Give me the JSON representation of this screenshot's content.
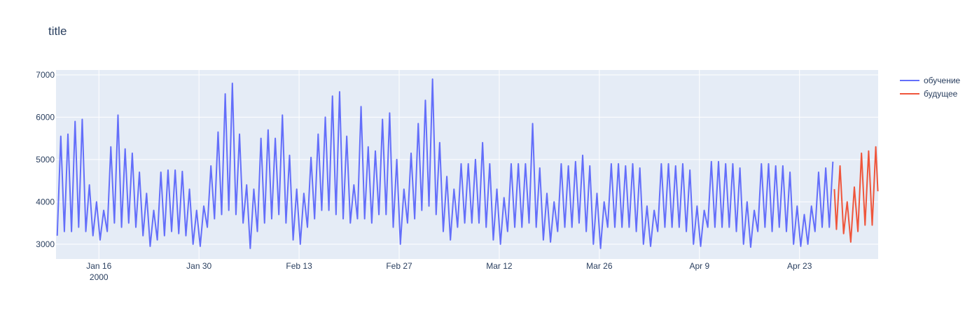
{
  "chart_data": {
    "type": "line",
    "title": "title",
    "xlim": [
      "2000-01-10 00:00",
      "2000-05-04 00:00"
    ],
    "xticks": [
      {
        "value": "2000-01-16",
        "label": "Jan 16\n2000"
      },
      {
        "value": "2000-01-30",
        "label": "Jan 30"
      },
      {
        "value": "2000-02-13",
        "label": "Feb 13"
      },
      {
        "value": "2000-02-27",
        "label": "Feb 27"
      },
      {
        "value": "2000-03-12",
        "label": "Mar 12"
      },
      {
        "value": "2000-03-26",
        "label": "Mar 26"
      },
      {
        "value": "2000-04-09",
        "label": "Apr 9"
      },
      {
        "value": "2000-04-23",
        "label": "Apr 23"
      }
    ],
    "ylim": [
      2650,
      7115
    ],
    "yticks": [
      3000,
      4000,
      5000,
      6000,
      7000
    ],
    "grid": true,
    "legend": "top-right",
    "series": [
      {
        "name": "обучение",
        "color": "#636efa",
        "x": [
          "2000-01-10 04:00",
          "2000-01-10 16:00",
          "2000-01-11 04:00",
          "2000-01-11 16:00",
          "2000-01-12 04:00",
          "2000-01-12 16:00",
          "2000-01-13 04:00",
          "2000-01-13 16:00",
          "2000-01-14 04:00",
          "2000-01-14 16:00",
          "2000-01-15 04:00",
          "2000-01-15 16:00",
          "2000-01-16 04:00",
          "2000-01-16 16:00",
          "2000-01-17 04:00",
          "2000-01-17 16:00",
          "2000-01-18 04:00",
          "2000-01-18 16:00",
          "2000-01-19 04:00",
          "2000-01-19 16:00",
          "2000-01-20 04:00",
          "2000-01-20 16:00",
          "2000-01-21 04:00",
          "2000-01-21 16:00",
          "2000-01-22 04:00",
          "2000-01-22 16:00",
          "2000-01-23 04:00",
          "2000-01-23 16:00",
          "2000-01-24 04:00",
          "2000-01-24 16:00",
          "2000-01-25 04:00",
          "2000-01-25 16:00",
          "2000-01-26 04:00",
          "2000-01-26 16:00",
          "2000-01-27 04:00",
          "2000-01-27 16:00",
          "2000-01-28 04:00",
          "2000-01-28 16:00",
          "2000-01-29 04:00",
          "2000-01-29 16:00",
          "2000-01-30 04:00",
          "2000-01-30 16:00",
          "2000-01-31 04:00",
          "2000-01-31 16:00",
          "2000-02-01 04:00",
          "2000-02-01 16:00",
          "2000-02-02 04:00",
          "2000-02-02 16:00",
          "2000-02-03 04:00",
          "2000-02-03 16:00",
          "2000-02-04 04:00",
          "2000-02-04 16:00",
          "2000-02-05 04:00",
          "2000-02-05 16:00",
          "2000-02-06 04:00",
          "2000-02-06 16:00",
          "2000-02-07 04:00",
          "2000-02-07 16:00",
          "2000-02-08 04:00",
          "2000-02-08 16:00",
          "2000-02-09 04:00",
          "2000-02-09 16:00",
          "2000-02-10 04:00",
          "2000-02-10 16:00",
          "2000-02-11 04:00",
          "2000-02-11 16:00",
          "2000-02-12 04:00",
          "2000-02-12 16:00",
          "2000-02-13 04:00",
          "2000-02-13 16:00",
          "2000-02-14 04:00",
          "2000-02-14 16:00",
          "2000-02-15 04:00",
          "2000-02-15 16:00",
          "2000-02-16 04:00",
          "2000-02-16 16:00",
          "2000-02-17 04:00",
          "2000-02-17 16:00",
          "2000-02-18 04:00",
          "2000-02-18 16:00",
          "2000-02-19 04:00",
          "2000-02-19 16:00",
          "2000-02-20 04:00",
          "2000-02-20 16:00",
          "2000-02-21 04:00",
          "2000-02-21 16:00",
          "2000-02-22 04:00",
          "2000-02-22 16:00",
          "2000-02-23 04:00",
          "2000-02-23 16:00",
          "2000-02-24 04:00",
          "2000-02-24 16:00",
          "2000-02-25 04:00",
          "2000-02-25 16:00",
          "2000-02-26 04:00",
          "2000-02-26 16:00",
          "2000-02-27 04:00",
          "2000-02-27 16:00",
          "2000-02-28 04:00",
          "2000-02-28 16:00",
          "2000-02-29 04:00",
          "2000-02-29 16:00",
          "2000-03-01 04:00",
          "2000-03-01 16:00",
          "2000-03-02 04:00",
          "2000-03-02 16:00",
          "2000-03-03 04:00",
          "2000-03-03 16:00",
          "2000-03-04 04:00",
          "2000-03-04 16:00",
          "2000-03-05 04:00",
          "2000-03-05 16:00",
          "2000-03-06 04:00",
          "2000-03-06 16:00",
          "2000-03-07 04:00",
          "2000-03-07 16:00",
          "2000-03-08 04:00",
          "2000-03-08 16:00",
          "2000-03-09 04:00",
          "2000-03-09 16:00",
          "2000-03-10 04:00",
          "2000-03-10 16:00",
          "2000-03-11 04:00",
          "2000-03-11 16:00",
          "2000-03-12 04:00",
          "2000-03-12 16:00",
          "2000-03-13 04:00",
          "2000-03-13 16:00",
          "2000-03-14 04:00",
          "2000-03-14 16:00",
          "2000-03-15 04:00",
          "2000-03-15 16:00",
          "2000-03-16 04:00",
          "2000-03-16 16:00",
          "2000-03-17 04:00",
          "2000-03-17 16:00",
          "2000-03-18 04:00",
          "2000-03-18 16:00",
          "2000-03-19 04:00",
          "2000-03-19 16:00",
          "2000-03-20 04:00",
          "2000-03-20 16:00",
          "2000-03-21 04:00",
          "2000-03-21 16:00",
          "2000-03-22 04:00",
          "2000-03-22 16:00",
          "2000-03-23 04:00",
          "2000-03-23 16:00",
          "2000-03-24 04:00",
          "2000-03-24 16:00",
          "2000-03-25 04:00",
          "2000-03-25 16:00",
          "2000-03-26 04:00",
          "2000-03-26 16:00",
          "2000-03-27 04:00",
          "2000-03-27 16:00",
          "2000-03-28 04:00",
          "2000-03-28 16:00",
          "2000-03-29 04:00",
          "2000-03-29 16:00",
          "2000-03-30 04:00",
          "2000-03-30 16:00",
          "2000-03-31 04:00",
          "2000-03-31 16:00",
          "2000-04-01 04:00",
          "2000-04-01 16:00",
          "2000-04-02 04:00",
          "2000-04-02 16:00",
          "2000-04-03 04:00",
          "2000-04-03 16:00",
          "2000-04-04 04:00",
          "2000-04-04 16:00",
          "2000-04-05 04:00",
          "2000-04-05 16:00",
          "2000-04-06 04:00",
          "2000-04-06 16:00",
          "2000-04-07 04:00",
          "2000-04-07 16:00",
          "2000-04-08 04:00",
          "2000-04-08 16:00",
          "2000-04-09 04:00",
          "2000-04-09 16:00",
          "2000-04-10 04:00",
          "2000-04-10 16:00",
          "2000-04-11 04:00",
          "2000-04-11 16:00",
          "2000-04-12 04:00",
          "2000-04-12 16:00",
          "2000-04-13 04:00",
          "2000-04-13 16:00",
          "2000-04-14 04:00",
          "2000-04-14 16:00",
          "2000-04-15 04:00",
          "2000-04-15 16:00",
          "2000-04-16 04:00",
          "2000-04-16 16:00",
          "2000-04-17 04:00",
          "2000-04-17 16:00",
          "2000-04-18 04:00",
          "2000-04-18 16:00",
          "2000-04-19 04:00",
          "2000-04-19 16:00",
          "2000-04-20 04:00",
          "2000-04-20 16:00",
          "2000-04-21 04:00",
          "2000-04-21 16:00",
          "2000-04-22 04:00",
          "2000-04-22 16:00",
          "2000-04-23 04:00",
          "2000-04-23 16:00",
          "2000-04-24 04:00",
          "2000-04-24 16:00",
          "2000-04-25 04:00",
          "2000-04-25 16:00",
          "2000-04-26 04:00",
          "2000-04-26 16:00",
          "2000-04-27 04:00",
          "2000-04-27 16:00"
        ],
        "values": [
          3200,
          5550,
          3300,
          5600,
          3300,
          5900,
          3400,
          5950,
          3300,
          4400,
          3200,
          4000,
          3100,
          3800,
          3300,
          5300,
          3500,
          6050,
          3400,
          5250,
          3500,
          5150,
          3400,
          4700,
          3200,
          4200,
          2950,
          3800,
          3100,
          4700,
          3200,
          4750,
          3300,
          4750,
          3250,
          4720,
          3200,
          4300,
          3000,
          3800,
          2950,
          3900,
          3400,
          4850,
          3600,
          5650,
          3700,
          6550,
          3800,
          6800,
          3700,
          5600,
          3500,
          4400,
          2900,
          4300,
          3300,
          5500,
          3500,
          5700,
          3600,
          5500,
          3700,
          6050,
          3500,
          5100,
          3100,
          4300,
          3000,
          4200,
          3400,
          5050,
          3600,
          5600,
          3800,
          6000,
          3800,
          6500,
          3700,
          6600,
          3600,
          5550,
          3500,
          4400,
          3600,
          6250,
          3600,
          5300,
          3500,
          5200,
          3700,
          5950,
          3700,
          6100,
          3400,
          5000,
          3000,
          4300,
          3500,
          5150,
          3600,
          5850,
          3800,
          6400,
          3900,
          6900,
          3700,
          5400,
          3300,
          4600,
          3100,
          4300,
          3400,
          4900,
          3500,
          4900,
          3500,
          5000,
          3500,
          5400,
          3400,
          4900,
          3100,
          4300,
          3000,
          4100,
          3300,
          4900,
          3400,
          4900,
          3400,
          4900,
          3500,
          5850,
          3400,
          4800,
          3100,
          4200,
          3050,
          4000,
          3300,
          4900,
          3400,
          4850,
          3400,
          4950,
          3500,
          5100,
          3300,
          4850,
          3000,
          4200,
          2900,
          4000,
          3400,
          4900,
          3400,
          4900,
          3400,
          4850,
          3400,
          4900,
          3300,
          4800,
          3000,
          3900,
          2950,
          3800,
          3300,
          4900,
          3400,
          4900,
          3400,
          4850,
          3400,
          4900,
          3300,
          4750,
          3000,
          3900,
          2950,
          3800,
          3400,
          4950,
          3400,
          4950,
          3400,
          4900,
          3400,
          4900,
          3300,
          4800,
          3000,
          4000,
          2930,
          3800,
          3300,
          4900,
          3400,
          4900,
          3300,
          4850,
          3400,
          4850,
          3300,
          4700,
          3000,
          3900,
          2950,
          3700,
          3000,
          3900,
          3300,
          4700,
          3400,
          4800,
          3400,
          4950
        ]
      },
      {
        "name": "будущее",
        "color": "#ef553b",
        "x": [
          "2000-04-27 21:00",
          "2000-04-28 04:00",
          "2000-04-28 16:00",
          "2000-04-29 04:00",
          "2000-04-29 16:00",
          "2000-04-30 04:00",
          "2000-04-30 16:00",
          "2000-05-01 04:00",
          "2000-05-01 16:00",
          "2000-05-02 04:00",
          "2000-05-02 16:00",
          "2000-05-03 04:00",
          "2000-05-03 16:00",
          "2000-05-03 23:00"
        ],
        "values": [
          4300,
          3350,
          4850,
          3250,
          4000,
          3050,
          4350,
          3300,
          5150,
          3450,
          5200,
          3450,
          5300,
          4250
        ]
      }
    ]
  }
}
